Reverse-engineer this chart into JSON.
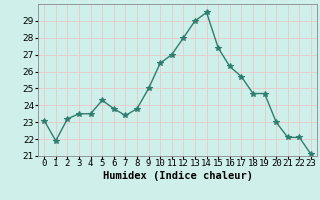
{
  "x": [
    0,
    1,
    2,
    3,
    4,
    5,
    6,
    7,
    8,
    9,
    10,
    11,
    12,
    13,
    14,
    15,
    16,
    17,
    18,
    19,
    20,
    21,
    22,
    23
  ],
  "y": [
    23.1,
    21.9,
    23.2,
    23.5,
    23.5,
    24.3,
    23.8,
    23.4,
    23.8,
    25.0,
    26.5,
    27.0,
    28.0,
    29.0,
    29.5,
    27.4,
    26.3,
    25.7,
    24.7,
    24.7,
    23.0,
    22.1,
    22.1,
    21.1
  ],
  "line_color": "#2e7d6e",
  "marker": "*",
  "marker_size": 4,
  "bg_color": "#cff0ea",
  "grid_color": "#e8c8c8",
  "xlabel": "Humidex (Indice chaleur)",
  "ylim": [
    21,
    30
  ],
  "xlim": [
    -0.5,
    23.5
  ],
  "yticks": [
    21,
    22,
    23,
    24,
    25,
    26,
    27,
    28,
    29
  ],
  "font_size": 6.5,
  "xlabel_fontsize": 7.5
}
